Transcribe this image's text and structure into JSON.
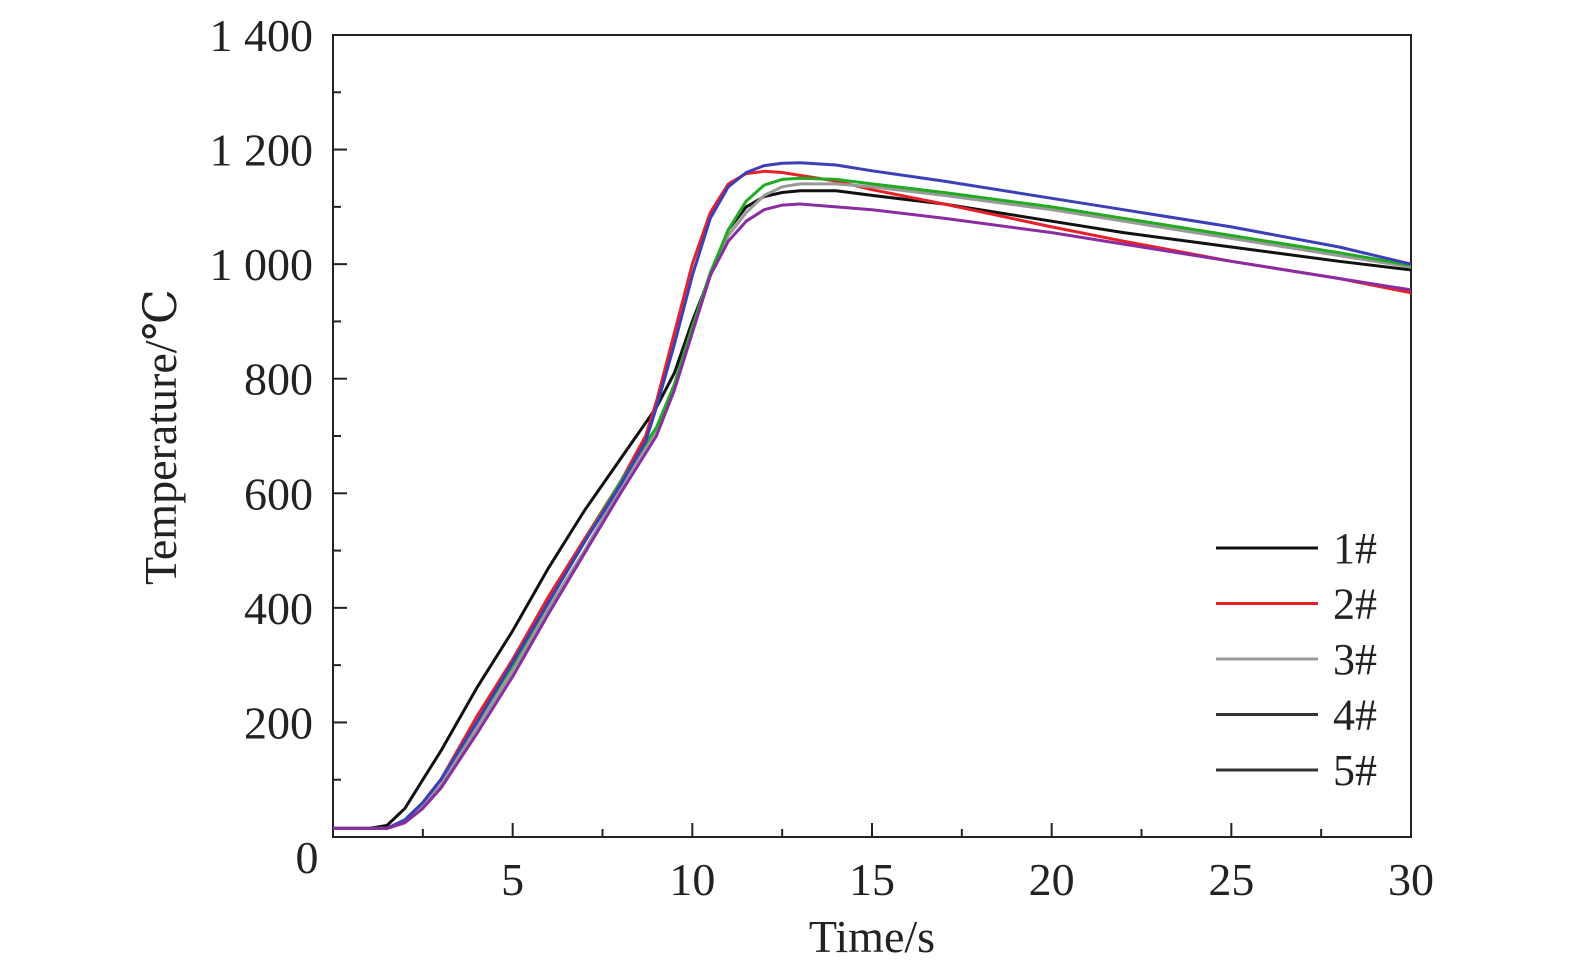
{
  "chart_data": {
    "type": "line",
    "xlabel": "Time/s",
    "ylabel": "Temperature/℃",
    "xlim": [
      0,
      30
    ],
    "ylim": [
      0,
      1400
    ],
    "x_ticks": [
      5,
      10,
      15,
      20,
      25,
      30
    ],
    "x_tick_labels": [
      "5",
      "10",
      "15",
      "20",
      "25",
      "30"
    ],
    "y_ticks": [
      200,
      400,
      600,
      800,
      1000,
      1200,
      1400
    ],
    "y_tick_labels": [
      "200",
      "400",
      "600",
      "800",
      "1 000",
      "1 200",
      "1 400"
    ],
    "origin_label": "0",
    "grid": false,
    "legend_position": "bottom-right",
    "series": [
      {
        "name": "1#",
        "color": "#111111",
        "x": [
          0,
          1,
          1.5,
          2,
          2.5,
          3,
          4,
          5,
          6,
          7,
          8,
          9,
          9.5,
          10,
          10.5,
          11,
          11.5,
          12,
          12.5,
          13,
          14,
          15,
          17,
          20,
          22,
          25,
          28,
          30
        ],
        "y": [
          15,
          15,
          20,
          50,
          100,
          150,
          260,
          360,
          470,
          570,
          660,
          750,
          810,
          900,
          980,
          1060,
          1100,
          1118,
          1125,
          1128,
          1128,
          1120,
          1105,
          1075,
          1055,
          1030,
          1005,
          990
        ]
      },
      {
        "name": "2#",
        "color": "#e8202a",
        "x": [
          0,
          1,
          1.5,
          2,
          2.5,
          3,
          4,
          5,
          6,
          7,
          8,
          8.7,
          9,
          9.5,
          10,
          10.5,
          11,
          11.5,
          12,
          12.5,
          13,
          14,
          15,
          17,
          20,
          22,
          25,
          28,
          30
        ],
        "y": [
          15,
          15,
          15,
          25,
          60,
          100,
          210,
          310,
          420,
          520,
          620,
          700,
          760,
          880,
          1000,
          1090,
          1140,
          1158,
          1162,
          1160,
          1155,
          1145,
          1130,
          1105,
          1065,
          1040,
          1005,
          975,
          950
        ]
      },
      {
        "name": "3#",
        "color": "#999999",
        "x": [
          0,
          1,
          1.5,
          2,
          2.5,
          3,
          4,
          5,
          6,
          7,
          8,
          9,
          9.5,
          10,
          10.5,
          11,
          11.5,
          12,
          12.5,
          13,
          14,
          15,
          17,
          20,
          22,
          25,
          28,
          30
        ],
        "y": [
          15,
          15,
          15,
          25,
          55,
          90,
          190,
          290,
          400,
          500,
          610,
          710,
          790,
          890,
          980,
          1050,
          1090,
          1120,
          1135,
          1140,
          1140,
          1135,
          1120,
          1095,
          1075,
          1045,
          1015,
          995
        ]
      },
      {
        "name": "4#",
        "color": "#22aa22",
        "x": [
          0,
          1,
          1.5,
          2,
          2.5,
          3,
          4,
          5,
          6,
          7,
          8,
          9,
          9.5,
          10,
          10.5,
          11,
          11.5,
          12,
          12.5,
          13,
          14,
          15,
          17,
          20,
          22,
          25,
          28,
          30
        ],
        "y": [
          15,
          15,
          15,
          30,
          60,
          100,
          200,
          300,
          410,
          515,
          620,
          715,
          790,
          890,
          985,
          1060,
          1110,
          1138,
          1148,
          1150,
          1148,
          1140,
          1125,
          1100,
          1080,
          1050,
          1020,
          998
        ]
      },
      {
        "name": "5#",
        "color": "#3b3fb8",
        "x": [
          0,
          1,
          1.5,
          2,
          2.5,
          3,
          4,
          5,
          6,
          7,
          8,
          8.7,
          9,
          9.5,
          10,
          10.5,
          11,
          11.5,
          12,
          12.5,
          13,
          14,
          15,
          17,
          20,
          22,
          25,
          28,
          30
        ],
        "y": [
          15,
          15,
          15,
          30,
          60,
          100,
          200,
          305,
          410,
          515,
          615,
          690,
          750,
          860,
          980,
          1080,
          1135,
          1160,
          1172,
          1176,
          1177,
          1173,
          1163,
          1145,
          1115,
          1095,
          1065,
          1030,
          1000
        ]
      },
      {
        "name": "",
        "color": "#8a2da0",
        "x": [
          0,
          1,
          1.5,
          2,
          2.5,
          3,
          4,
          5,
          6,
          7,
          8,
          9,
          9.5,
          10,
          10.5,
          11,
          11.5,
          12,
          12.5,
          13,
          14,
          15,
          17,
          20,
          22,
          25,
          28,
          30
        ],
        "y": [
          15,
          15,
          15,
          25,
          50,
          85,
          180,
          280,
          390,
          495,
          600,
          700,
          780,
          880,
          980,
          1040,
          1075,
          1095,
          1103,
          1105,
          1100,
          1095,
          1080,
          1055,
          1035,
          1005,
          975,
          955
        ]
      }
    ],
    "legend": [
      {
        "label": "1#",
        "color": "#111111"
      },
      {
        "label": "2#",
        "color": "#e8202a"
      },
      {
        "label": "3#",
        "color": "#999999"
      },
      {
        "label": "4#",
        "color": "#333333"
      },
      {
        "label": "5#",
        "color": "#333333"
      }
    ]
  }
}
